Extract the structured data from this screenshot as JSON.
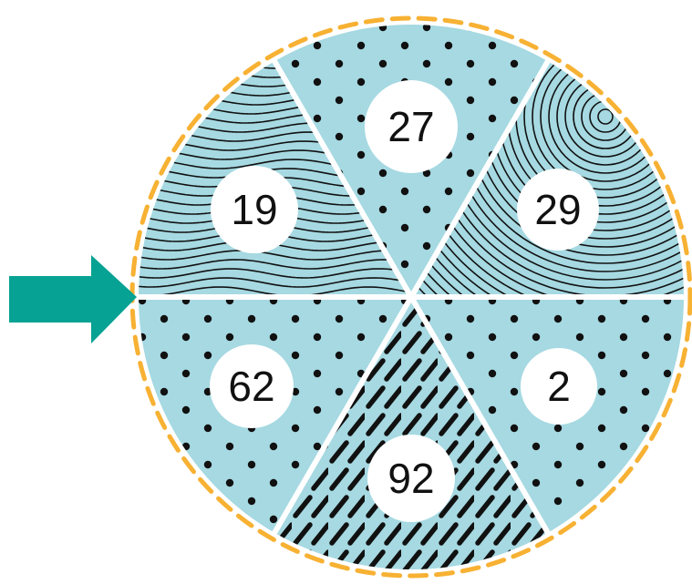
{
  "sectors": [
    {
      "id": "top",
      "label": "27",
      "pattern": "dots"
    },
    {
      "id": "upper-right",
      "label": "29",
      "pattern": "concentric-arcs"
    },
    {
      "id": "lower-right",
      "label": "2",
      "pattern": "dots"
    },
    {
      "id": "bottom",
      "label": "92",
      "pattern": "dashes"
    },
    {
      "id": "lower-left",
      "label": "62",
      "pattern": "dots"
    },
    {
      "id": "upper-left",
      "label": "19",
      "pattern": "waves"
    }
  ],
  "pointer": {
    "icon": "right-arrow-icon",
    "color": "#06a293"
  },
  "colors": {
    "sector_fill": "#a6d9e2",
    "divider": "#ffffff",
    "border_dash": "#f7b133",
    "pattern_ink": "#111111",
    "label_circle": "#ffffff"
  }
}
